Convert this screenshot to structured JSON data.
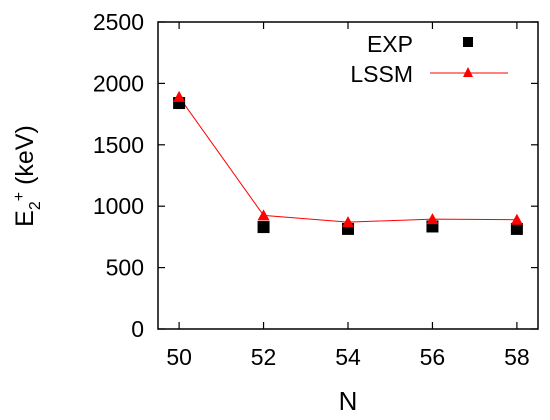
{
  "chart_data": {
    "type": "scatter",
    "title": "",
    "xlabel": "N",
    "ylabel": {
      "base": "E",
      "sub": "2",
      "sup": "+",
      "unit": " (keV)"
    },
    "xlim": [
      49.5,
      58.5
    ],
    "ylim": [
      0,
      2500
    ],
    "x_ticks": [
      "50",
      "52",
      "54",
      "56",
      "58"
    ],
    "y_ticks": [
      "0",
      "500",
      "1000",
      "1500",
      "2000",
      "2500"
    ],
    "legend_position": "top-right",
    "series": [
      {
        "name": "EXP",
        "marker": "square",
        "line": false,
        "color": "#000000",
        "x": [
          50,
          52,
          54,
          56,
          58
        ],
        "y": [
          1840,
          830,
          815,
          835,
          815
        ]
      },
      {
        "name": "LSSM",
        "marker": "triangle",
        "line": true,
        "color": "#ff0000",
        "x": [
          50,
          52,
          54,
          56,
          58
        ],
        "y": [
          1890,
          925,
          870,
          895,
          890
        ]
      }
    ]
  }
}
